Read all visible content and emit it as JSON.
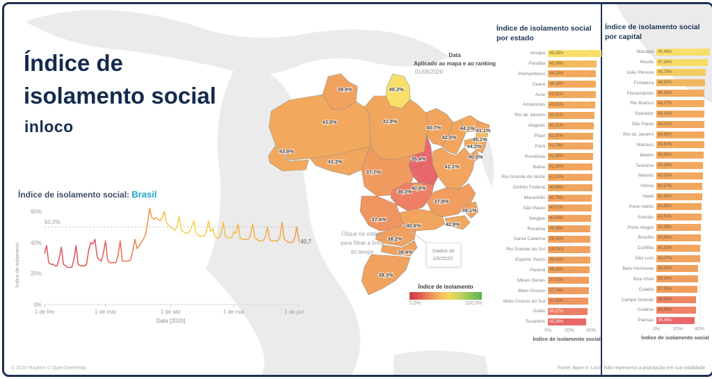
{
  "header": {
    "line1": "Índice de",
    "line2": "isolamento social",
    "brand": "inloco"
  },
  "colors": {
    "navy": "#152b4d",
    "cyan": "#1fa3c9",
    "orange": "#f0a05e",
    "yellow": "#f7de66",
    "salmon": "#e8696b"
  },
  "map": {
    "date_note": {
      "line1": "Data",
      "line2": "Aplicado ao mapa e ao ranking",
      "line3": "01/06/2020"
    },
    "hint": "Clique no estado para filtrar a linha do tempo",
    "tooltip": {
      "line1": "Dados de",
      "line2": "1/6/2020"
    },
    "legend": {
      "title": "Índice de isolamento",
      "min": "0,0%",
      "max": "100,0%"
    },
    "states": [
      {
        "id": "RR",
        "name": "Roraima",
        "value": 39.4,
        "label": "39,4%"
      },
      {
        "id": "AP",
        "name": "Amapá",
        "value": 49.3,
        "label": "49,3%"
      },
      {
        "id": "AM",
        "name": "Amazonas",
        "value": 43.8,
        "label": "43,8%"
      },
      {
        "id": "PA",
        "name": "Pará",
        "value": 41.8,
        "label": "41,8%"
      },
      {
        "id": "AC",
        "name": "Acre",
        "value": 43.9,
        "label": "43,9%"
      },
      {
        "id": "RO",
        "name": "Rondônia",
        "value": 41.3,
        "label": "41,3%"
      },
      {
        "id": "MT",
        "name": "Mato Grosso",
        "value": 37.7,
        "label": "37,7%"
      },
      {
        "id": "TO",
        "name": "Tocantins",
        "value": 35.4,
        "label": "35,4%"
      },
      {
        "id": "MA",
        "name": "Maranhão",
        "value": 40.7,
        "label": "40,7%"
      },
      {
        "id": "PI",
        "name": "Piauí",
        "value": 42.0,
        "label": "42,0%"
      },
      {
        "id": "CE",
        "name": "Ceará",
        "value": 44.2,
        "label": "44,2%"
      },
      {
        "id": "RN",
        "name": "Rio Grande do Norte",
        "value": 41.1,
        "label": "41,1%"
      },
      {
        "id": "PB",
        "name": "Paraíba",
        "value": 45.1,
        "label": "45,1%"
      },
      {
        "id": "PE",
        "name": "Pernambuco",
        "value": 44.2,
        "label": "44,2%"
      },
      {
        "id": "AL",
        "name": "Alagoas",
        "value": 42.2,
        "label": ""
      },
      {
        "id": "SE",
        "name": "Sergipe",
        "value": 40.0,
        "label": "40,0%"
      },
      {
        "id": "BA",
        "name": "Bahia",
        "value": 41.1,
        "label": "41,1%"
      },
      {
        "id": "GO",
        "name": "Goiás",
        "value": 36.3,
        "label": "36,3%"
      },
      {
        "id": "DF",
        "name": "Distrito Federal",
        "value": 40.8,
        "label": "40,8%"
      },
      {
        "id": "MG",
        "name": "Minas Gerais",
        "value": 37.8,
        "label": "37,8%"
      },
      {
        "id": "ES",
        "name": "Espírito Santo",
        "value": 39.1,
        "label": "39,1%"
      },
      {
        "id": "RJ",
        "name": "Rio de Janeiro",
        "value": 42.9,
        "label": "42,9%"
      },
      {
        "id": "SP",
        "name": "São Paulo",
        "value": 40.6,
        "label": "40,6%"
      },
      {
        "id": "MS",
        "name": "Mato Grosso do Sul",
        "value": 37.4,
        "label": "37,4%"
      },
      {
        "id": "PR",
        "name": "Paraná",
        "value": 38.2,
        "label": "38,2%"
      },
      {
        "id": "SC",
        "name": "Santa Catarina",
        "value": 39.4,
        "label": "39,4%"
      },
      {
        "id": "RS",
        "name": "Rio Grande do Sul",
        "value": 39.3,
        "label": "39,3%"
      }
    ]
  },
  "chart_data": [
    {
      "type": "line",
      "title_prefix": "Índice de isolamento social:",
      "region": "Brasil",
      "ylabel": "Índice de isolamento",
      "xlabel": "Data [2020]",
      "yticks": [
        "0%",
        "20%",
        "40%",
        "60%"
      ],
      "xticks": [
        "1 de fev",
        "1 de mar",
        "1 de abr",
        "1 de mai",
        "1 de jun"
      ],
      "ref_line": 50.0,
      "ref_label": "50,0%",
      "end_label": "40,7%",
      "ylim": [
        0,
        65
      ],
      "x_start": "2020-02-01",
      "x_end": "2020-06-01",
      "values": [
        33,
        38,
        27,
        26,
        26,
        25,
        25,
        30,
        37,
        26,
        25,
        24,
        24,
        24,
        29,
        38,
        26,
        25,
        25,
        25,
        26,
        35,
        40,
        39,
        42,
        31,
        29,
        28,
        33,
        41,
        29,
        27,
        27,
        27,
        27,
        32,
        41,
        28,
        28,
        28,
        28,
        29,
        35,
        42,
        36,
        38,
        40,
        42,
        45,
        52,
        62,
        56,
        55,
        56,
        55,
        54,
        56,
        60,
        53,
        51,
        50,
        49,
        48,
        50,
        57,
        48,
        47,
        46,
        46,
        47,
        50,
        54,
        46,
        45,
        44,
        44,
        44,
        47,
        54,
        47,
        49,
        44,
        43,
        43,
        46,
        53,
        44,
        43,
        43,
        43,
        47,
        46,
        52,
        43,
        42,
        42,
        42,
        42,
        45,
        52,
        43,
        42,
        41,
        41,
        41,
        44,
        50,
        42,
        41,
        41,
        41,
        41,
        44,
        53,
        42,
        41,
        40,
        40,
        40,
        43,
        50,
        40.7
      ]
    },
    {
      "type": "bar",
      "title": "Índice de isolamento social por estado",
      "xlabel": "Índice de isolamento social",
      "xticks": [
        "0%",
        "20%",
        "40%"
      ],
      "xlim": [
        0,
        50
      ],
      "categories": [
        "Amapá",
        "Paraíba",
        "Pernambuco",
        "Ceará",
        "Acre",
        "Amazonas",
        "Rio de Janeiro",
        "Alagoas",
        "Piauí",
        "Pará",
        "Rondônia",
        "Bahia",
        "Rio Grande do Norte",
        "Distrito Federal",
        "Maranhão",
        "São Paulo",
        "Sergipe",
        "Roraima",
        "Santa Catarina",
        "Rio Grande do Sul",
        "Espírito Santo",
        "Paraná",
        "Minas Gerais",
        "Mato Grosso",
        "Mato Grosso do Sul",
        "Goiás",
        "Tocantins"
      ],
      "values": [
        49.28,
        45.08,
        44.23,
        44.18,
        43.92,
        43.83,
        42.91,
        42.21,
        41.97,
        41.79,
        41.35,
        41.14,
        41.1,
        40.84,
        40.7,
        40.57,
        40.04,
        39.38,
        39.35,
        39.29,
        39.06,
        38.24,
        37.82,
        37.74,
        37.42,
        36.27,
        35.38
      ],
      "labels": [
        "49,28%",
        "45,08%",
        "44,23%",
        "44,18%",
        "43,92%",
        "43,83%",
        "42,91%",
        "42,21%",
        "41,97%",
        "41,79%",
        "41,35%",
        "41,14%",
        "41,10%",
        "40,84%",
        "40,70%",
        "40,57%",
        "40,04%",
        "39,38%",
        "39,35%",
        "39,29%",
        "39,06%",
        "38,24%",
        "37,82%",
        "37,74%",
        "37,42%",
        "36,27%",
        "35,38%"
      ]
    },
    {
      "type": "bar",
      "title": "Índice de isolamento social por capital",
      "xlabel": "Índice de isolamento social",
      "xticks": [
        "0%",
        "20%",
        "40%"
      ],
      "xlim": [
        0,
        50
      ],
      "categories": [
        "Macapá",
        "Recife",
        "João Pessoa",
        "Fortaleza",
        "Florianópolis",
        "Rio Branco",
        "Salvador",
        "São Paulo",
        "Rio de Janeiro",
        "Manaus",
        "Belém",
        "Teresina",
        "Maceió",
        "Vitória",
        "Natal",
        "Porto Velho",
        "Aracaju",
        "Porto Alegre",
        "Brasília",
        "Curitiba",
        "São Luís",
        "Belo Horizonte",
        "Boa Vista",
        "Cuiabá",
        "Campo Grande",
        "Goiânia",
        "Palmas"
      ],
      "values": [
        49.48,
        47.34,
        45.7,
        44.92,
        44.33,
        44.27,
        44.13,
        44.01,
        43.95,
        43.92,
        43.33,
        43.26,
        43.01,
        42.57,
        42.4,
        41.95,
        41.51,
        41.28,
        40.84,
        40.32,
        40.07,
        38.53,
        38.26,
        37.9,
        36.62,
        36.45,
        35.46
      ],
      "labels": [
        "49,48%",
        "47,34%",
        "45,70%",
        "44,92%",
        "44,33%",
        "44,27%",
        "44,13%",
        "44,01%",
        "43,95%",
        "43,92%",
        "43,33%",
        "43,26%",
        "43,01%",
        "42,57%",
        "42,40%",
        "41,95%",
        "41,51%",
        "41,28%",
        "40,84%",
        "40,32%",
        "40,07%",
        "38,53%",
        "38,26%",
        "37,90%",
        "36,62%",
        "36,45%",
        "35,46%"
      ]
    }
  ],
  "footer": {
    "left": "© 2020 Mapbox © OpenStreetMap",
    "right": "Fonte: Base In Loco. Não representa a população em sua totalidade."
  }
}
